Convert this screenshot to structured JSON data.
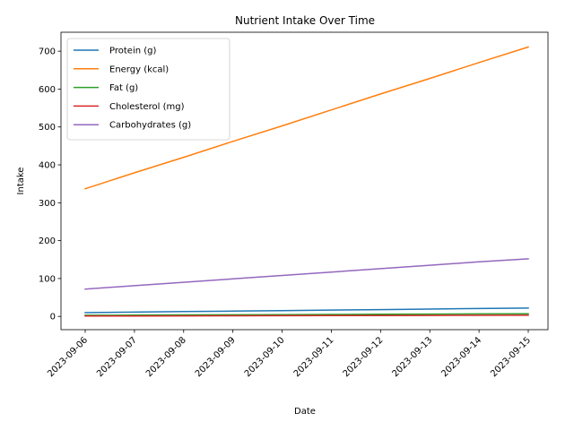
{
  "chart_data": {
    "type": "line",
    "title": "Nutrient Intake Over Time",
    "xlabel": "Date",
    "ylabel": "Intake",
    "x": [
      "2023-09-06",
      "2023-09-07",
      "2023-09-08",
      "2023-09-09",
      "2023-09-10",
      "2023-09-11",
      "2023-09-12",
      "2023-09-13",
      "2023-09-14",
      "2023-09-15"
    ],
    "ylim": [
      -35,
      750
    ],
    "yticks": [
      0,
      100,
      200,
      300,
      400,
      500,
      600,
      700
    ],
    "grid": false,
    "legend_position": "top-left",
    "series": [
      {
        "name": "Protein (g)",
        "color": "#1f77b4",
        "values": [
          10,
          11.3,
          12.7,
          14,
          15.3,
          16.7,
          18,
          19.3,
          20.7,
          22
        ]
      },
      {
        "name": "Energy (kcal)",
        "color": "#ff7f0e",
        "values": [
          337,
          379,
          420,
          462,
          503,
          545,
          587,
          628,
          670,
          711
        ]
      },
      {
        "name": "Fat (g)",
        "color": "#2ca02c",
        "values": [
          3,
          3.4,
          3.9,
          4.3,
          4.8,
          5.2,
          5.7,
          6.1,
          6.6,
          7
        ]
      },
      {
        "name": "Cholesterol (mg)",
        "color": "#d62728",
        "values": [
          1,
          1.2,
          1.4,
          1.7,
          1.9,
          2.1,
          2.3,
          2.6,
          2.8,
          3
        ]
      },
      {
        "name": "Carbohydrates (g)",
        "color": "#9467bd",
        "values": [
          72,
          81,
          90,
          99,
          108,
          117,
          126,
          135,
          144,
          152
        ]
      }
    ]
  }
}
